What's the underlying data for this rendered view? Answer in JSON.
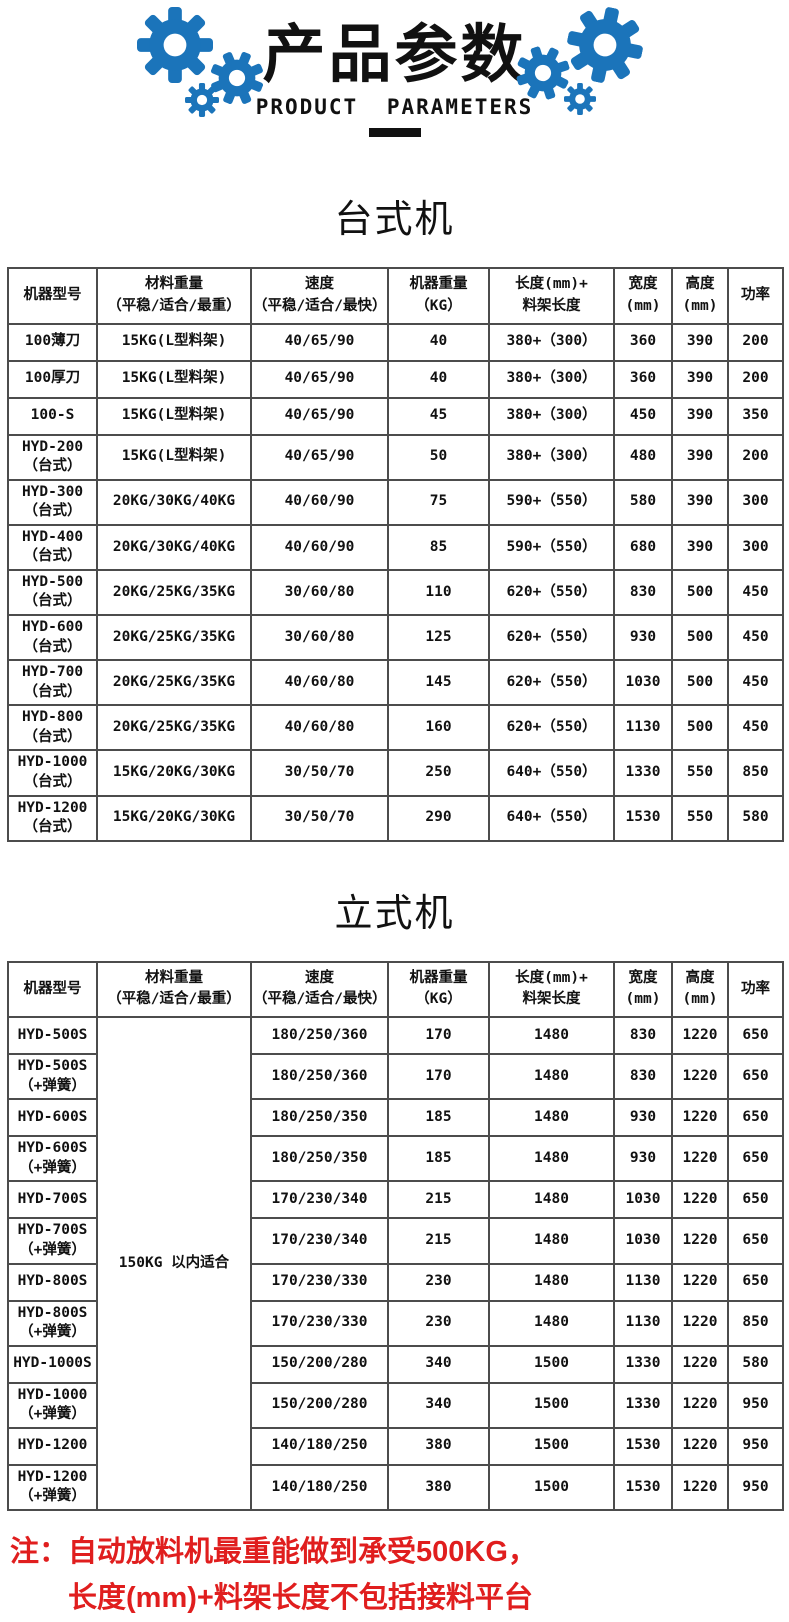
{
  "colors": {
    "gear_blue": "#1b74ba",
    "note_red": "#e01e1e",
    "table_border": "#4c4c4c"
  },
  "hero": {
    "title": "产品参数",
    "subtitle": "PRODUCT PARAMETERS"
  },
  "columns": [
    "机器型号",
    "材料重量\n（平稳/适合/最重）",
    "速度\n（平稳/适合/最快）",
    "机器重量\n（KG）",
    "长度(mm)+\n料架长度",
    "宽度\n(mm)",
    "高度\n(mm)",
    "功率"
  ],
  "sections": [
    {
      "title": "台式机",
      "rows": [
        {
          "model": "100薄刀",
          "material": "15KG(L型料架)",
          "speed": "40/65/90",
          "weight": "40",
          "length": "380+（300）",
          "width": "360",
          "height": "390",
          "power": "200"
        },
        {
          "model": "100厚刀",
          "material": "15KG(L型料架)",
          "speed": "40/65/90",
          "weight": "40",
          "length": "380+（300）",
          "width": "360",
          "height": "390",
          "power": "200"
        },
        {
          "model": "100-S",
          "material": "15KG(L型料架)",
          "speed": "40/65/90",
          "weight": "45",
          "length": "380+（300）",
          "width": "450",
          "height": "390",
          "power": "350"
        },
        {
          "model": "HYD-200\n（台式）",
          "material": "15KG(L型料架)",
          "speed": "40/65/90",
          "weight": "50",
          "length": "380+（300）",
          "width": "480",
          "height": "390",
          "power": "200"
        },
        {
          "model": "HYD-300\n（台式）",
          "material": "20KG/30KG/40KG",
          "speed": "40/60/90",
          "weight": "75",
          "length": "590+（550）",
          "width": "580",
          "height": "390",
          "power": "300"
        },
        {
          "model": "HYD-400\n（台式）",
          "material": "20KG/30KG/40KG",
          "speed": "40/60/90",
          "weight": "85",
          "length": "590+（550）",
          "width": "680",
          "height": "390",
          "power": "300"
        },
        {
          "model": "HYD-500\n（台式）",
          "material": "20KG/25KG/35KG",
          "speed": "30/60/80",
          "weight": "110",
          "length": "620+（550）",
          "width": "830",
          "height": "500",
          "power": "450"
        },
        {
          "model": "HYD-600\n（台式）",
          "material": "20KG/25KG/35KG",
          "speed": "30/60/80",
          "weight": "125",
          "length": "620+（550）",
          "width": "930",
          "height": "500",
          "power": "450"
        },
        {
          "model": "HYD-700\n（台式）",
          "material": "20KG/25KG/35KG",
          "speed": "40/60/80",
          "weight": "145",
          "length": "620+（550）",
          "width": "1030",
          "height": "500",
          "power": "450"
        },
        {
          "model": "HYD-800\n（台式）",
          "material": "20KG/25KG/35KG",
          "speed": "40/60/80",
          "weight": "160",
          "length": "620+（550）",
          "width": "1130",
          "height": "500",
          "power": "450"
        },
        {
          "model": "HYD-1000\n（台式）",
          "material": "15KG/20KG/30KG",
          "speed": "30/50/70",
          "weight": "250",
          "length": "640+（550）",
          "width": "1330",
          "height": "550",
          "power": "850"
        },
        {
          "model": "HYD-1200\n（台式）",
          "material": "15KG/20KG/30KG",
          "speed": "30/50/70",
          "weight": "290",
          "length": "640+（550）",
          "width": "1530",
          "height": "550",
          "power": "580"
        }
      ]
    },
    {
      "title": "立式机",
      "merged_material": "150KG 以内适合",
      "rows": [
        {
          "model": "HYD-500S",
          "speed": "180/250/360",
          "weight": "170",
          "length": "1480",
          "width": "830",
          "height": "1220",
          "power": "650"
        },
        {
          "model": "HYD-500S\n（+弹簧）",
          "speed": "180/250/360",
          "weight": "170",
          "length": "1480",
          "width": "830",
          "height": "1220",
          "power": "650"
        },
        {
          "model": "HYD-600S",
          "speed": "180/250/350",
          "weight": "185",
          "length": "1480",
          "width": "930",
          "height": "1220",
          "power": "650"
        },
        {
          "model": "HYD-600S\n（+弹簧）",
          "speed": "180/250/350",
          "weight": "185",
          "length": "1480",
          "width": "930",
          "height": "1220",
          "power": "650"
        },
        {
          "model": "HYD-700S",
          "speed": "170/230/340",
          "weight": "215",
          "length": "1480",
          "width": "1030",
          "height": "1220",
          "power": "650"
        },
        {
          "model": "HYD-700S\n（+弹簧）",
          "speed": "170/230/340",
          "weight": "215",
          "length": "1480",
          "width": "1030",
          "height": "1220",
          "power": "650"
        },
        {
          "model": "HYD-800S",
          "speed": "170/230/330",
          "weight": "230",
          "length": "1480",
          "width": "1130",
          "height": "1220",
          "power": "650"
        },
        {
          "model": "HYD-800S\n（+弹簧）",
          "speed": "170/230/330",
          "weight": "230",
          "length": "1480",
          "width": "1130",
          "height": "1220",
          "power": "850"
        },
        {
          "model": "HYD-1000S",
          "speed": "150/200/280",
          "weight": "340",
          "length": "1500",
          "width": "1330",
          "height": "1220",
          "power": "580"
        },
        {
          "model": "HYD-1000\n（+弹簧）",
          "speed": "150/200/280",
          "weight": "340",
          "length": "1500",
          "width": "1330",
          "height": "1220",
          "power": "950"
        },
        {
          "model": "HYD-1200",
          "speed": "140/180/250",
          "weight": "380",
          "length": "1500",
          "width": "1530",
          "height": "1220",
          "power": "950"
        },
        {
          "model": "HYD-1200\n（+弹簧）",
          "speed": "140/180/250",
          "weight": "380",
          "length": "1500",
          "width": "1530",
          "height": "1220",
          "power": "950"
        }
      ]
    }
  ],
  "note": {
    "line1": "注：自动放料机最重能做到承受500KG，",
    "line2": "长度(mm)+料架长度不包括接料平台"
  }
}
